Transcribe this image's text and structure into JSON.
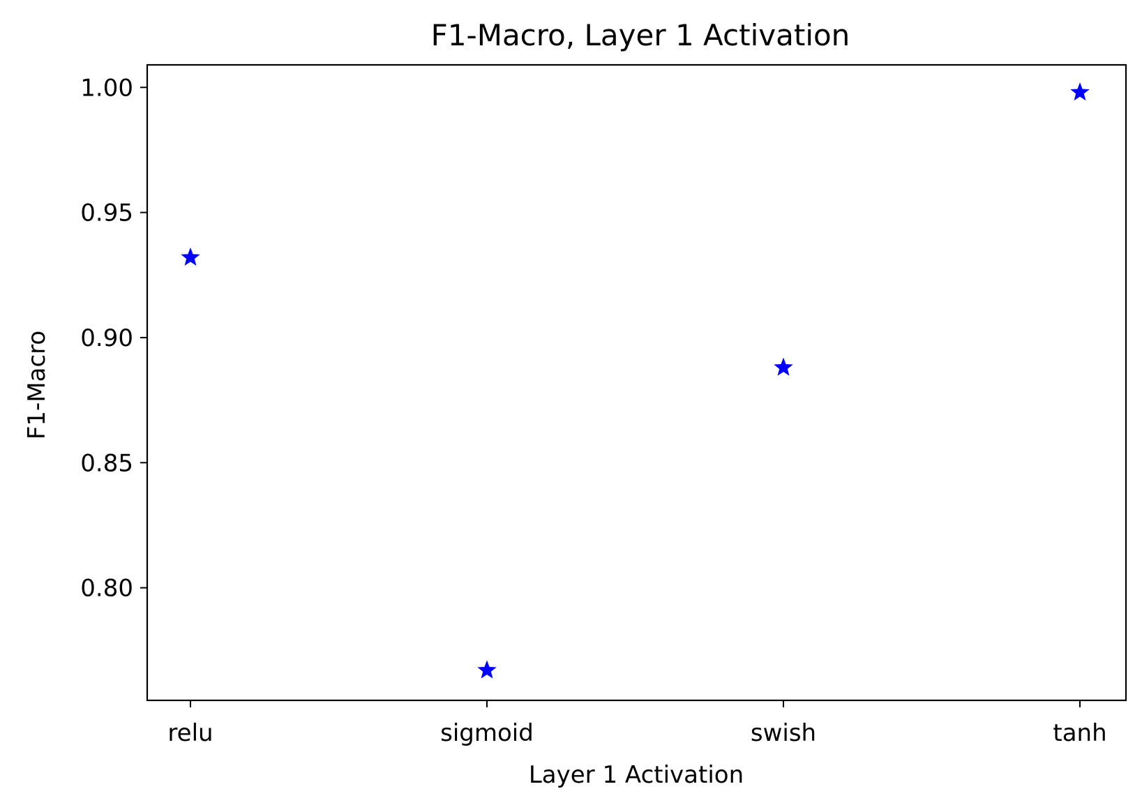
{
  "chart_data": {
    "type": "scatter",
    "title": "F1-Macro, Layer 1 Activation",
    "xlabel": "Layer 1 Activation",
    "ylabel": "F1-Macro",
    "categories": [
      "relu",
      "sigmoid",
      "swish",
      "tanh"
    ],
    "values": [
      0.932,
      0.767,
      0.888,
      0.998
    ],
    "ylim": [
      0.755,
      1.009
    ],
    "yticks": [
      "0.80",
      "0.85",
      "0.90",
      "0.95",
      "1.00"
    ],
    "marker": "star",
    "marker_color": "#0000ff",
    "grid": false,
    "legend": "none"
  }
}
